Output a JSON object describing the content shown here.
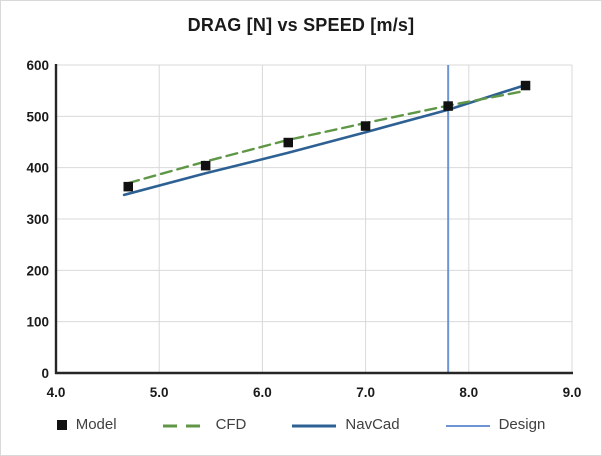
{
  "window": {
    "background": "#ffffff",
    "border_color": "#d9d9d9"
  },
  "chart_data": {
    "type": "line",
    "title": "DRAG [N] vs SPEED [m/s]",
    "xlabel": "",
    "ylabel": "",
    "xlim": [
      4.0,
      9.0
    ],
    "ylim": [
      0,
      600
    ],
    "x_ticks": [
      "4.0",
      "5.0",
      "6.0",
      "7.0",
      "8.0",
      "9.0"
    ],
    "y_ticks": [
      "0",
      "100",
      "200",
      "300",
      "400",
      "500",
      "600"
    ],
    "grid": true,
    "gridline_color": "#d9d9d9",
    "axis_color": "#262626",
    "legend_position": "bottom",
    "series": [
      {
        "name": "Model",
        "type": "scatter",
        "marker": "square",
        "color": "#111111",
        "x": [
          4.7,
          5.45,
          6.25,
          7.0,
          7.8,
          8.55
        ],
        "y": [
          363,
          404,
          449,
          481,
          520,
          560
        ]
      },
      {
        "name": "CFD",
        "type": "line",
        "style": "dashed",
        "color": "#5f9747",
        "x": [
          4.7,
          5.45,
          6.25,
          7.0,
          7.8,
          8.53
        ],
        "y": [
          370,
          412,
          454,
          487,
          521,
          549
        ]
      },
      {
        "name": "NavCad",
        "type": "line",
        "style": "solid",
        "color": "#2e6193",
        "x": [
          4.66,
          5.45,
          6.25,
          7.0,
          7.8,
          8.55
        ],
        "y": [
          347,
          389,
          429,
          469,
          513,
          561
        ]
      },
      {
        "name": "Design",
        "type": "vline",
        "style": "solid",
        "color": "#6d95d3",
        "x": 7.8
      }
    ]
  }
}
